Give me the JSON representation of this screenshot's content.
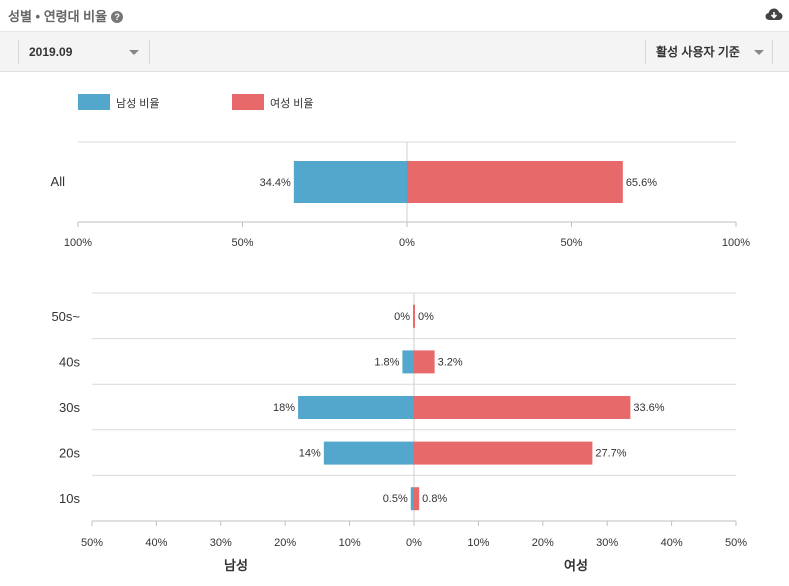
{
  "header": {
    "title": "성별 • 연령대 비율",
    "help_icon": "question-circle-icon",
    "download_icon": "cloud-download-icon"
  },
  "filters": {
    "date": "2019.09",
    "basis": "활성 사용자 기준"
  },
  "colors": {
    "male": "#54a7cc",
    "female": "#e8696a"
  },
  "chart_data": [
    {
      "type": "bar",
      "orientation": "horizontal-diverging",
      "categories": [
        "All"
      ],
      "series": [
        {
          "name": "남성 비율",
          "values": [
            34.4
          ]
        },
        {
          "name": "여성 비율",
          "values": [
            65.6
          ]
        }
      ],
      "value_labels": {
        "male": [
          "34.4%"
        ],
        "female": [
          "65.6%"
        ]
      },
      "xlim": [
        -100,
        100
      ],
      "ticks": [
        "100%",
        "50%",
        "0%",
        "50%",
        "100%"
      ],
      "legend": "top-left",
      "grid": true
    },
    {
      "type": "bar",
      "orientation": "horizontal-diverging",
      "categories": [
        "50s~",
        "40s",
        "30s",
        "20s",
        "10s"
      ],
      "series": [
        {
          "name": "남성",
          "values": [
            0,
            1.8,
            18,
            14,
            0.5
          ]
        },
        {
          "name": "여성",
          "values": [
            0,
            3.2,
            33.6,
            27.7,
            0.8
          ]
        }
      ],
      "value_labels": {
        "male": [
          "0%",
          "1.8%",
          "18%",
          "14%",
          "0.5%"
        ],
        "female": [
          "0%",
          "3.2%",
          "33.6%",
          "27.7%",
          "0.8%"
        ]
      },
      "xlim": [
        -50,
        50
      ],
      "ticks": [
        "50%",
        "40%",
        "30%",
        "20%",
        "10%",
        "0%",
        "10%",
        "20%",
        "30%",
        "40%",
        "50%"
      ],
      "xlabel_left": "남성",
      "xlabel_right": "여성",
      "grid": true
    }
  ]
}
